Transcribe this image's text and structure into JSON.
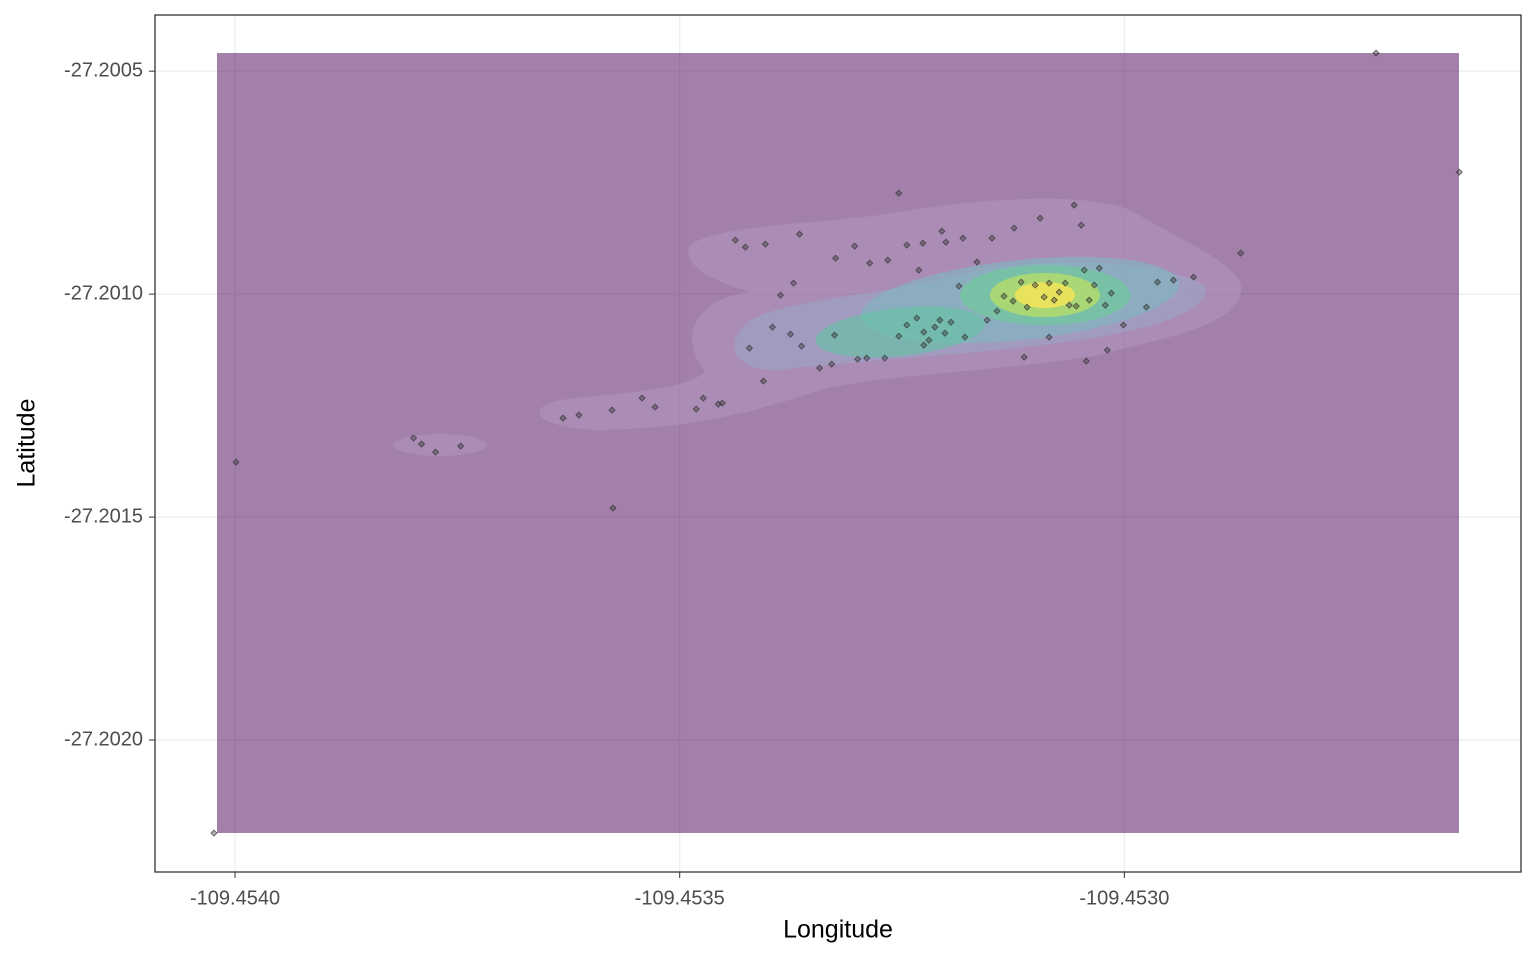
{
  "chart_data": {
    "type": "scatter",
    "x_label": "Longitude",
    "y_label": "Latitude",
    "xlim": [
      -109.45409,
      -109.452554
    ],
    "ylim": [
      -27.202296,
      -27.200374
    ],
    "xticks": [
      {
        "value": -109.454,
        "label": "-109.4540"
      },
      {
        "value": -109.4535,
        "label": "-109.4535"
      },
      {
        "value": -109.453,
        "label": "-109.4530"
      }
    ],
    "yticks": [
      -27.2005,
      {
        "value": -27.201,
        "label": "-27.2010"
      },
      -27.2015,
      {
        "value": -27.202,
        "label": "-27.2020"
      }
    ],
    "grid": true,
    "point_color": "#333333",
    "x": [
      -109.4540237,
      -109.452717,
      -109.4526234,
      -109.4539989,
      -109.453575,
      -109.4532537,
      -109.4528692,
      -109.4537993,
      -109.4537903,
      -109.4537745,
      -109.4537463,
      -109.4536313,
      -109.4536133,
      -109.4535761,
      -109.4535423,
      -109.4535276,
      -109.4534814,
      -109.4534735,
      -109.4534566,
      -109.4534521,
      -109.4534374,
      -109.4534262,
      -109.4534036,
      -109.4533653,
      -109.4533867,
      -109.453372,
      -109.4533957,
      -109.4534216,
      -109.4533754,
      -109.4534059,
      -109.453363,
      -109.4533427,
      -109.4533292,
      -109.4533258,
      -109.4533247,
      -109.4533033,
      -109.4532864,
      -109.4532661,
      -109.4532446,
      -109.4532266,
      -109.4532007,
      -109.4531815,
      -109.4532052,
      -109.4531488,
      -109.453124,
      -109.4530947,
      -109.4530564,
      -109.4530485,
      -109.4532311,
      -109.4532999,
      -109.4532897,
      -109.4532694,
      -109.4532537,
      -109.4532446,
      -109.4532334,
      -109.4532255,
      -109.4532198,
      -109.4532131,
      -109.4532074,
      -109.4532018,
      -109.453195,
      -109.4531793,
      -109.4532255,
      -109.4531544,
      -109.4531432,
      -109.4531353,
      -109.4531251,
      -109.4531161,
      -109.4531094,
      -109.4531003,
      -109.4530902,
      -109.4530846,
      -109.4530789,
      -109.4530733,
      -109.4530665,
      -109.453062,
      -109.4530541,
      -109.4530451,
      -109.4530395,
      -109.4530338,
      -109.4530282,
      -109.4530214,
      -109.4530147,
      -109.4530011,
      -109.4530192,
      -109.4530428,
      -109.4530846,
      -109.4531127,
      -109.4529752,
      -109.4529628,
      -109.4529448,
      -109.4529222,
      -109.4531657,
      -109.453186
    ],
    "values": [
      -27.2022086,
      -27.2004596,
      -27.2007265,
      -27.2013767,
      -27.2014798,
      -27.2007735,
      -27.2009081,
      -27.2013229,
      -27.2013363,
      -27.2013543,
      -27.2013408,
      -27.201278,
      -27.2012713,
      -27.2012601,
      -27.2012332,
      -27.2012534,
      -27.2012579,
      -27.2012332,
      -27.2012467,
      -27.2012444,
      -27.2008789,
      -27.2008946,
      -27.2008879,
      -27.2008655,
      -27.2010023,
      -27.2009753,
      -27.201074,
      -27.2011211,
      -27.2010897,
      -27.2011951,
      -27.2011166,
      -27.2011659,
      -27.201157,
      -27.2010919,
      -27.2009193,
      -27.2008924,
      -27.2009305,
      -27.2009238,
      -27.2008901,
      -27.2008857,
      -27.2008834,
      -27.2008744,
      -27.2008588,
      -27.2008744,
      -27.200852,
      -27.2008296,
      -27.2008005,
      -27.2008453,
      -27.2009462,
      -27.2011458,
      -27.2011435,
      -27.2011435,
      -27.2010942,
      -27.2010695,
      -27.2010538,
      -27.2010852,
      -27.2011032,
      -27.201074,
      -27.2010583,
      -27.2010875,
      -27.2010628,
      -27.2010964,
      -27.2011144,
      -27.2010583,
      -27.2010381,
      -27.2010045,
      -27.2010157,
      -27.2009731,
      -27.2010292,
      -27.2009798,
      -27.2010067,
      -27.2009753,
      -27.2010135,
      -27.2009955,
      -27.2009753,
      -27.2010247,
      -27.2010269,
      -27.2009462,
      -27.2010135,
      -27.2009798,
      -27.2009417,
      -27.2010247,
      -27.2009978,
      -27.2010695,
      -27.2011256,
      -27.2011502,
      -27.2010964,
      -27.2011413,
      -27.2010292,
      -27.2009731,
      -27.2009686,
      -27.2009619,
      -27.2009283,
      -27.2009821
    ]
  }
}
